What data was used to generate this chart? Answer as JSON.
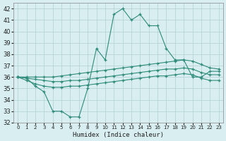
{
  "x": [
    0,
    1,
    2,
    3,
    4,
    5,
    6,
    7,
    8,
    9,
    10,
    11,
    12,
    13,
    14,
    15,
    16,
    17,
    18,
    19,
    20,
    21,
    22,
    23
  ],
  "series1": [
    36,
    35.9,
    35.2,
    34.7,
    33.0,
    33.0,
    32.5,
    32.5,
    35.0,
    38.5,
    37.5,
    41.5,
    42.0,
    41.0,
    41.5,
    40.5,
    40.5,
    38.5,
    37.5,
    37.5,
    36.0,
    36.0,
    36.5,
    36.5
  ],
  "series2": [
    36.0,
    36.0,
    36.0,
    36.0,
    36.0,
    36.1,
    36.2,
    36.3,
    36.4,
    36.5,
    36.6,
    36.7,
    36.8,
    36.9,
    37.0,
    37.1,
    37.2,
    37.3,
    37.4,
    37.5,
    37.4,
    37.1,
    36.8,
    36.7
  ],
  "series3": [
    36.0,
    35.9,
    35.8,
    35.7,
    35.6,
    35.6,
    35.7,
    35.7,
    35.8,
    35.9,
    36.0,
    36.1,
    36.2,
    36.3,
    36.4,
    36.5,
    36.6,
    36.7,
    36.7,
    36.8,
    36.7,
    36.4,
    36.2,
    36.2
  ],
  "series4": [
    36.0,
    35.7,
    35.4,
    35.2,
    35.1,
    35.1,
    35.2,
    35.2,
    35.3,
    35.4,
    35.5,
    35.6,
    35.7,
    35.8,
    35.9,
    36.0,
    36.1,
    36.1,
    36.2,
    36.3,
    36.2,
    35.9,
    35.7,
    35.7
  ],
  "line_color": "#2e8b7a",
  "bg_color": "#d8eef0",
  "grid_color": "#b0cfd4",
  "xlabel": "Humidex (Indice chaleur)",
  "ylim": [
    32,
    42.5
  ],
  "xlim": [
    -0.5,
    23.5
  ],
  "yticks": [
    32,
    33,
    34,
    35,
    36,
    37,
    38,
    39,
    40,
    41,
    42
  ],
  "xticks": [
    0,
    1,
    2,
    3,
    4,
    5,
    6,
    7,
    8,
    9,
    10,
    11,
    12,
    13,
    14,
    15,
    16,
    17,
    18,
    19,
    20,
    21,
    22,
    23
  ]
}
